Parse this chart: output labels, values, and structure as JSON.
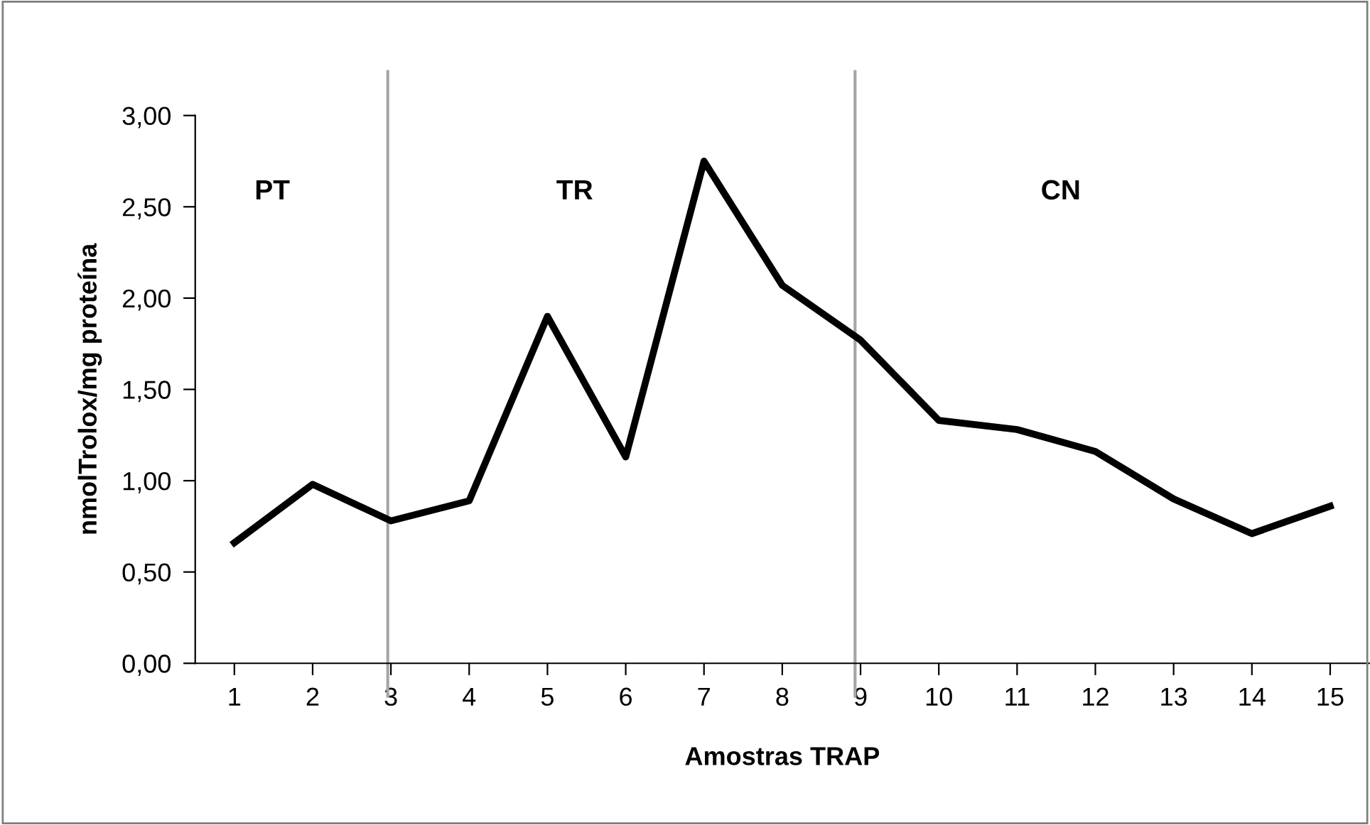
{
  "chart_data": {
    "type": "line",
    "xlabel": "Amostras TRAP",
    "ylabel": "nmolTrolox/mg proteína",
    "x": [
      1,
      2,
      3,
      4,
      5,
      6,
      7,
      8,
      9,
      10,
      11,
      12,
      13,
      14,
      15
    ],
    "series": [
      {
        "color": "#000000",
        "values": [
          0.66,
          0.98,
          0.78,
          0.89,
          1.9,
          1.13,
          2.75,
          2.07,
          1.77,
          1.33,
          1.28,
          1.16,
          0.9,
          0.71,
          0.86
        ]
      }
    ],
    "xlim": [
      0.5,
      15.5
    ],
    "xticks": [
      1,
      2,
      3,
      4,
      5,
      6,
      7,
      8,
      9,
      10,
      11,
      12,
      13,
      14,
      15
    ],
    "ylim": [
      0,
      3
    ],
    "yticks": [
      {
        "value": 0,
        "label": "0,00"
      },
      {
        "value": 0.5,
        "label": "0,50"
      },
      {
        "value": 1,
        "label": "1,00"
      },
      {
        "value": 1.5,
        "label": "1,50"
      },
      {
        "value": 2,
        "label": "2,00"
      },
      {
        "value": 2.5,
        "label": "2,50"
      },
      {
        "value": 3,
        "label": "3,00"
      }
    ],
    "ref_lines": [
      {
        "axis": "x",
        "value": 2.96,
        "color": "#a6a6a6"
      },
      {
        "axis": "x",
        "value": 8.93,
        "color": "#a6a6a6"
      }
    ],
    "annotations": [
      "PT",
      "TR",
      "CN"
    ],
    "grid": false,
    "legend": false,
    "marker": "none",
    "line_style": "solid"
  }
}
